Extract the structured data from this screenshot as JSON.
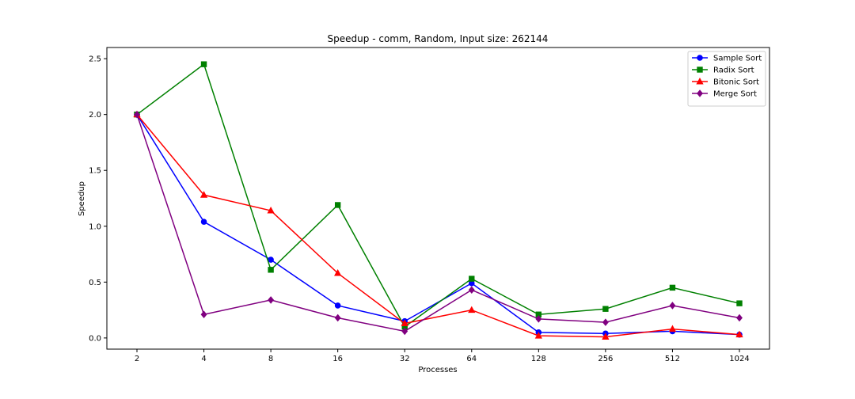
{
  "chart_data": {
    "type": "line",
    "title": "Speedup - comm, Random, Input size: 262144",
    "xlabel": "Processes",
    "ylabel": "Speedup",
    "categories": [
      "2",
      "4",
      "8",
      "16",
      "32",
      "64",
      "128",
      "256",
      "512",
      "1024"
    ],
    "ylim": [
      -0.1,
      2.6
    ],
    "yticks": [
      "0.0",
      "0.5",
      "1.0",
      "1.5",
      "2.0",
      "2.5"
    ],
    "grid": false,
    "legend_position": "top-right",
    "series": [
      {
        "name": "Sample Sort",
        "color": "#0000ff",
        "marker": "circle",
        "values": [
          2.0,
          1.04,
          0.7,
          0.29,
          0.15,
          0.49,
          0.05,
          0.04,
          0.06,
          0.03
        ]
      },
      {
        "name": "Radix Sort",
        "color": "#008000",
        "marker": "square",
        "values": [
          2.0,
          2.45,
          0.61,
          1.19,
          0.1,
          0.53,
          0.21,
          0.26,
          0.45,
          0.31
        ]
      },
      {
        "name": "Bitonic Sort",
        "color": "#ff0000",
        "marker": "triangle",
        "values": [
          2.0,
          1.28,
          1.14,
          0.58,
          0.13,
          0.25,
          0.02,
          0.01,
          0.08,
          0.03
        ]
      },
      {
        "name": "Merge Sort",
        "color": "#800080",
        "marker": "diamond",
        "values": [
          2.0,
          0.21,
          0.34,
          0.18,
          0.06,
          0.43,
          0.17,
          0.14,
          0.29,
          0.18
        ]
      }
    ]
  }
}
